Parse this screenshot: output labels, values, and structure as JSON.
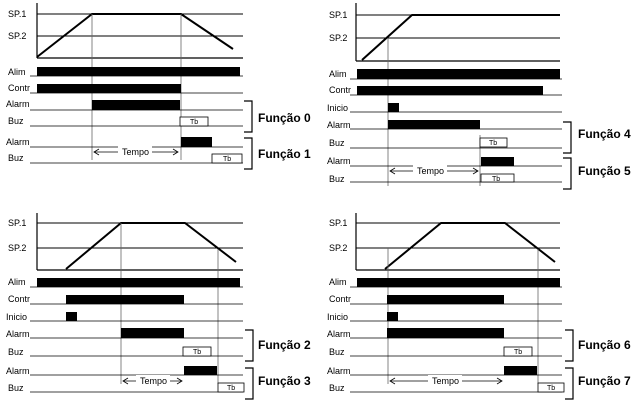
{
  "labels": {
    "sp1": "SP.1",
    "sp2": "SP.2",
    "alim": "Alim",
    "contr": "Contr",
    "inicio": "Inicio",
    "alarm": "Alarm",
    "buz": "Buz",
    "tempo": "Tempo",
    "tb": "Tb"
  },
  "functions": {
    "f0": "Função 0",
    "f1": "Função 1",
    "f2": "Função 2",
    "f3": "Função 3",
    "f4": "Função 4",
    "f5": "Função 5",
    "f6": "Função 6",
    "f7": "Função 7"
  }
}
